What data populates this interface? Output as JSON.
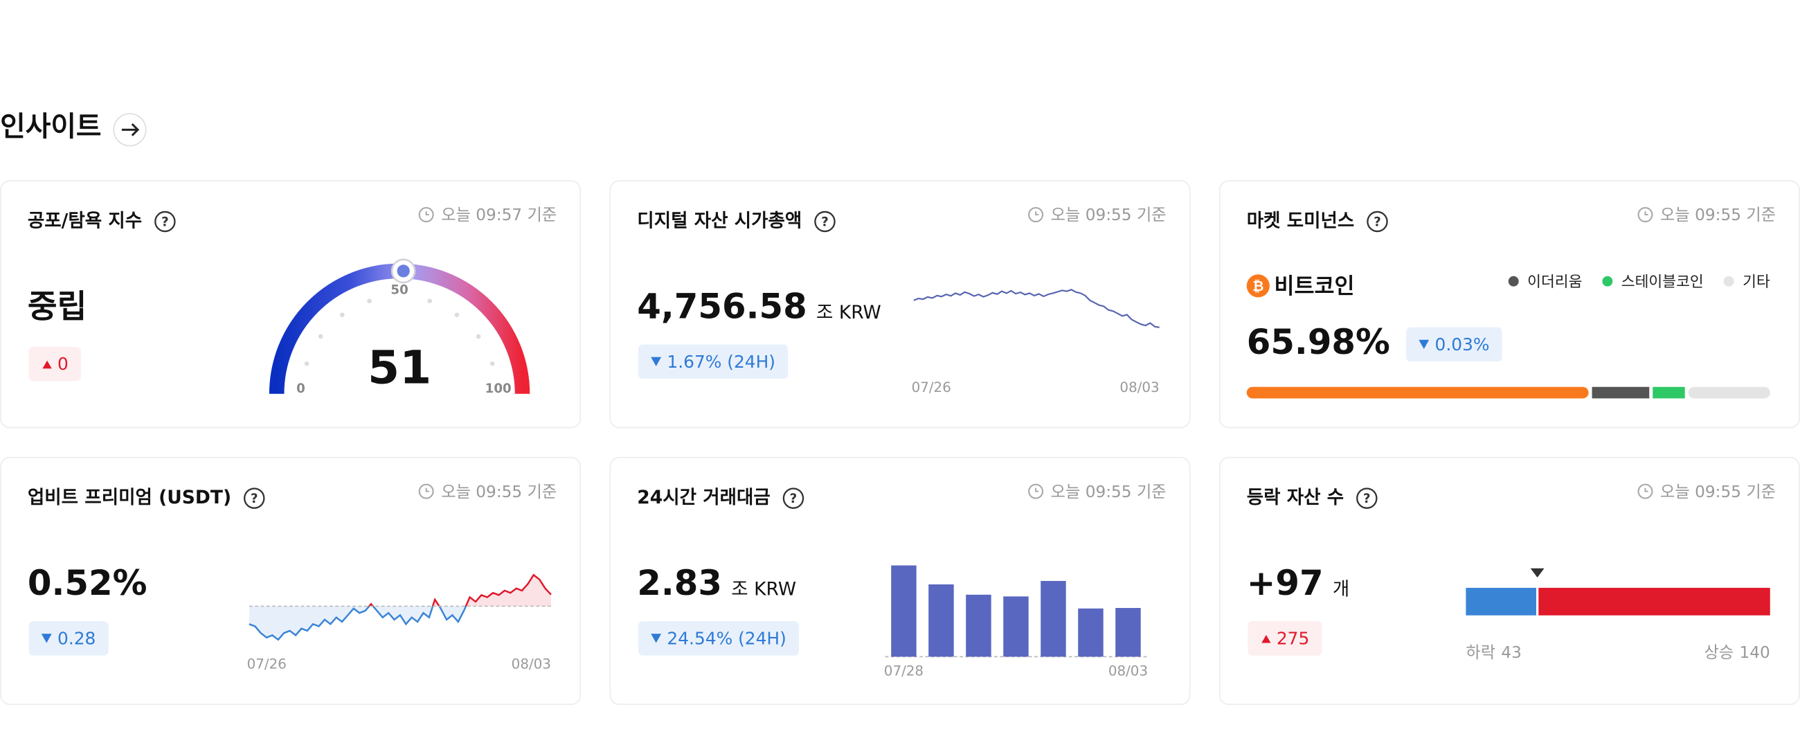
{
  "section_title": "인사이트",
  "cards": [
    {
      "title": "공포/탐욕 지수",
      "timestamp": "오늘 09:57 기준",
      "status": "중립",
      "change": "0",
      "chart_data": {
        "type": "gauge",
        "value": 51,
        "ylim": [
          0,
          100
        ],
        "yticks": [
          0,
          50,
          100
        ]
      }
    },
    {
      "title": "디지털 자산 시가총액",
      "timestamp": "오늘 09:55 기준",
      "value": "4,756.58",
      "unit": "조 KRW",
      "change": "1.67% (24H)",
      "chart_data": {
        "type": "line",
        "color": "#5563b0",
        "ylim": [
          4700,
          4950
        ],
        "x_labels": [
          "07/26",
          "08/03"
        ],
        "values": [
          4870,
          4878,
          4875,
          4884,
          4880,
          4890,
          4886,
          4895,
          4889,
          4900,
          4893,
          4905,
          4898,
          4888,
          4895,
          4885,
          4892,
          4902,
          4896,
          4908,
          4900,
          4910,
          4898,
          4904,
          4894,
          4900,
          4890,
          4897,
          4887,
          4895,
          4900,
          4906,
          4912,
          4908,
          4915,
          4905,
          4900,
          4890,
          4870,
          4860,
          4850,
          4845,
          4830,
          4825,
          4815,
          4805,
          4810,
          4790,
          4780,
          4770,
          4765,
          4775,
          4760,
          4756.58
        ]
      }
    },
    {
      "title": "마켓 도미넌스",
      "timestamp": "오늘 09:55 기준",
      "change": "0.03%",
      "chart_data": {
        "type": "stacked-bar",
        "segments": [
          {
            "name": "비트코인",
            "color": "#f97a1e",
            "value": 65.98,
            "value_label": "65.98%"
          },
          {
            "name": "이더리움",
            "color": "#555555",
            "value": 11.6
          },
          {
            "name": "스테이블코인",
            "color": "#2fc866",
            "value": 6.8
          },
          {
            "name": "기타",
            "color": "#e4e4e4",
            "value": 15.62
          }
        ]
      }
    },
    {
      "title": "업비트 프리미엄 (USDT)",
      "timestamp": "오늘 09:55 기준",
      "value": "0.52%",
      "change": "0.28",
      "chart_data": {
        "type": "area",
        "reference": 0,
        "ylim": [
          -1.9,
          1.8
        ],
        "x_labels": [
          "07/26",
          "08/03"
        ],
        "color_below": "#3a84d6",
        "color_above": "#e0192b",
        "values": [
          -0.8,
          -0.9,
          -1.2,
          -1.4,
          -1.3,
          -1.5,
          -1.2,
          -1.1,
          -1.3,
          -1.0,
          -1.1,
          -0.8,
          -0.9,
          -0.6,
          -0.8,
          -0.5,
          -0.7,
          -0.4,
          -0.1,
          -0.3,
          -0.2,
          0.1,
          -0.2,
          -0.5,
          -0.3,
          -0.6,
          -0.4,
          -0.8,
          -0.5,
          -0.7,
          -0.3,
          -0.5,
          0.3,
          -0.1,
          -0.6,
          -0.4,
          -0.7,
          -0.2,
          0.4,
          0.2,
          0.5,
          0.4,
          0.6,
          0.5,
          0.7,
          0.6,
          0.8,
          0.7,
          1.0,
          1.4,
          1.2,
          0.8,
          0.52
        ]
      }
    },
    {
      "title": "24시간 거래대금",
      "timestamp": "오늘 09:55 기준",
      "value": "2.83",
      "unit": "조 KRW",
      "change": "24.54% (24H)",
      "chart_data": {
        "type": "bar",
        "color": "#5a67c0",
        "ylim": [
          0,
          5.6
        ],
        "categories": [
          "07/28",
          null,
          null,
          null,
          null,
          null,
          "08/03"
        ],
        "values": [
          5.3,
          4.2,
          3.6,
          3.5,
          4.4,
          2.8,
          2.83
        ]
      }
    },
    {
      "title": "등락 자산 수",
      "timestamp": "오늘 09:55 기준",
      "value": "+97",
      "unit": "개",
      "change": "275",
      "chart_data": {
        "type": "split-bar",
        "segments": [
          {
            "name": "하락",
            "color": "#3a84d6",
            "value": 43
          },
          {
            "name": "상승",
            "color": "#e0192b",
            "value": 140
          }
        ]
      }
    }
  ]
}
